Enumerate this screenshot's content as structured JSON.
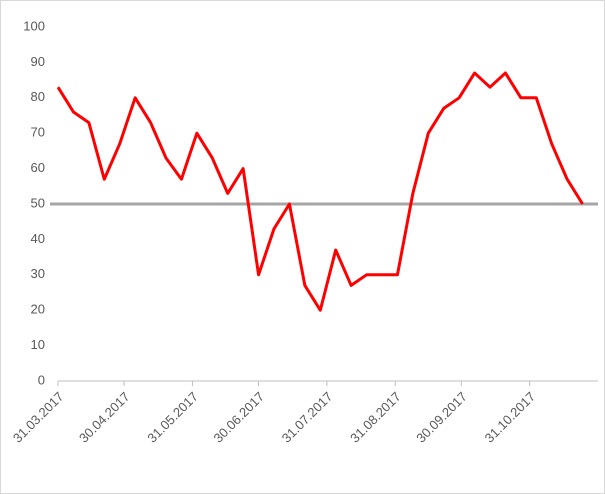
{
  "chart_data": {
    "type": "line",
    "x": [
      "2017-03-31",
      "2017-04-07",
      "2017-04-14",
      "2017-04-21",
      "2017-04-28",
      "2017-05-05",
      "2017-05-12",
      "2017-05-19",
      "2017-05-26",
      "2017-06-02",
      "2017-06-09",
      "2017-06-16",
      "2017-06-23",
      "2017-06-30",
      "2017-07-07",
      "2017-07-14",
      "2017-07-21",
      "2017-07-28",
      "2017-08-04",
      "2017-08-11",
      "2017-08-18",
      "2017-08-25",
      "2017-09-01",
      "2017-09-08",
      "2017-09-15",
      "2017-09-22",
      "2017-09-29",
      "2017-10-06",
      "2017-10-13",
      "2017-10-20",
      "2017-10-27",
      "2017-11-03",
      "2017-11-10",
      "2017-11-17",
      "2017-11-24"
    ],
    "series": [
      {
        "color": "#ff0000",
        "values": [
          83,
          76,
          73,
          57,
          67,
          80,
          73,
          63,
          57,
          70,
          63,
          53,
          60,
          30,
          43,
          50,
          27,
          20,
          37,
          27,
          30,
          30,
          30,
          53,
          70,
          77,
          80,
          87,
          83,
          87,
          80,
          80,
          67,
          57,
          50
        ]
      }
    ],
    "reference_line": {
      "value": 50,
      "color": "#a6a6a6"
    },
    "xlim": [
      "2017-03-31",
      "2017-12-01"
    ],
    "xticks": [
      {
        "value": "2017-03-31",
        "label": "31.03.2017"
      },
      {
        "value": "2017-04-30",
        "label": "30.04.2017"
      },
      {
        "value": "2017-05-31",
        "label": "31.05.2017"
      },
      {
        "value": "2017-06-30",
        "label": "30.06.2017"
      },
      {
        "value": "2017-07-31",
        "label": "31.07.2017"
      },
      {
        "value": "2017-08-31",
        "label": "31.08.2017"
      },
      {
        "value": "2017-09-30",
        "label": "30.09.2017"
      },
      {
        "value": "2017-10-31",
        "label": "31.10.2017"
      }
    ],
    "ylim": [
      0,
      100
    ],
    "yticks": [
      0,
      10,
      20,
      30,
      40,
      50,
      60,
      70,
      80,
      90,
      100
    ],
    "grid": false
  }
}
